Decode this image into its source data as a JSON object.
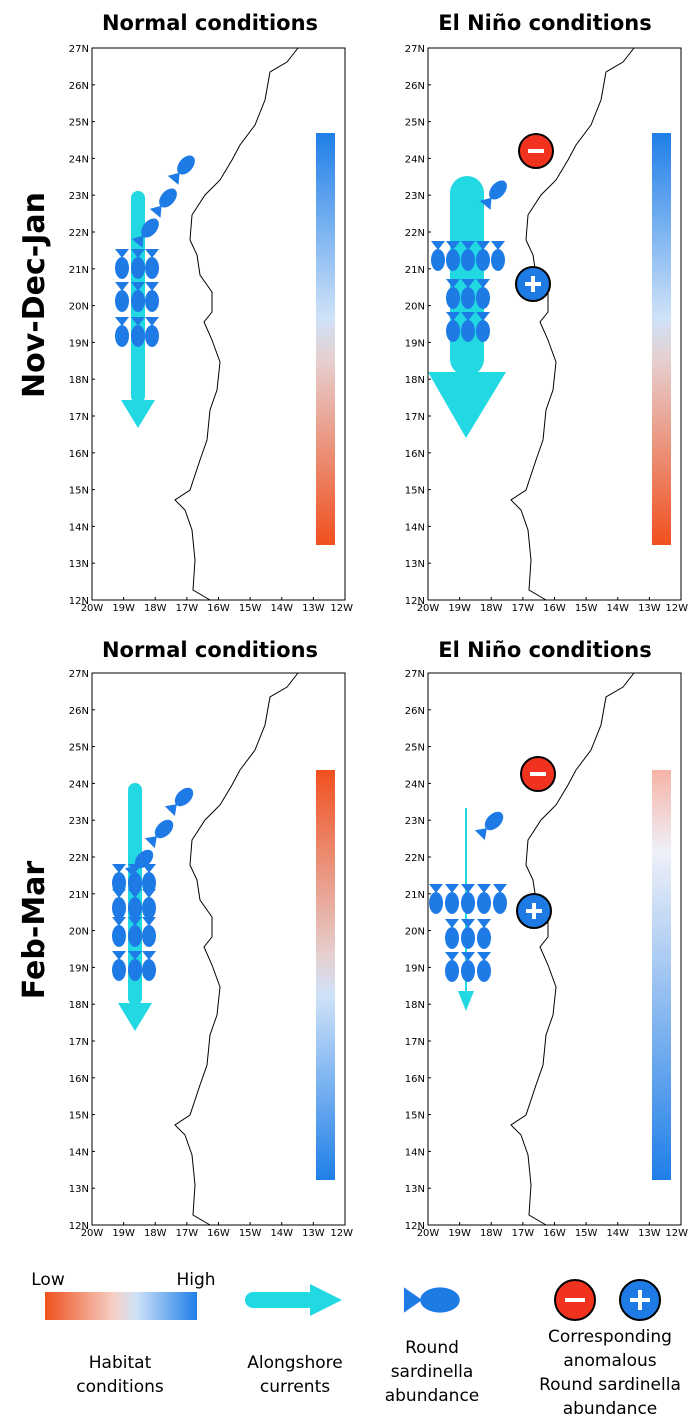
{
  "panels": [
    {
      "title": "Normal conditions"
    },
    {
      "title": "El Niño conditions"
    },
    {
      "title": "Normal conditions"
    },
    {
      "title": "El Niño conditions"
    }
  ],
  "row_labels": [
    "Nov-Dec-Jan",
    "Feb-Mar"
  ],
  "axes": {
    "lat_labels": [
      "12N",
      "13N",
      "14N",
      "15N",
      "16N",
      "17N",
      "18N",
      "19N",
      "20N",
      "21N",
      "22N",
      "23N",
      "24N",
      "25N",
      "26N",
      "27N"
    ],
    "lon_labels": [
      "20W",
      "19W",
      "18W",
      "17W",
      "16W",
      "15W",
      "14W",
      "13W",
      "12W"
    ]
  },
  "legend": {
    "low": "Low",
    "high": "High",
    "habitat": [
      "Habitat",
      "conditions"
    ],
    "currents": [
      "Alongshore",
      "currents"
    ],
    "sardinella": [
      "Round",
      "sardinella",
      "abundance"
    ],
    "anomaly": [
      "Corresponding",
      "anomalous",
      "Round sardinella",
      "abundance"
    ]
  }
}
